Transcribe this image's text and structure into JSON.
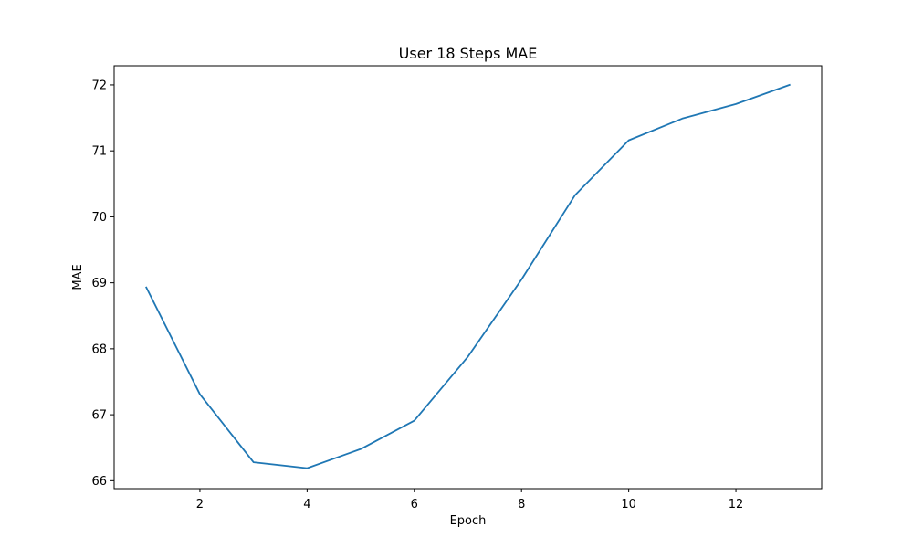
{
  "chart_data": {
    "type": "line",
    "title": "User 18 Steps MAE",
    "xlabel": "Epoch",
    "ylabel": "MAE",
    "x": [
      1,
      2,
      3,
      4,
      5,
      6,
      7,
      8,
      9,
      10,
      11,
      12,
      13
    ],
    "series": [
      {
        "values": [
          68.93,
          67.31,
          66.28,
          66.19,
          66.48,
          66.91,
          67.88,
          69.05,
          70.33,
          71.16,
          71.49,
          71.71,
          72.0
        ],
        "color": "#1f77b4"
      }
    ],
    "xlim": [
      0.4,
      13.6
    ],
    "ylim": [
      65.88,
      72.29
    ],
    "xticks": [
      2,
      4,
      6,
      8,
      10,
      12
    ],
    "yticks": [
      66,
      67,
      68,
      69,
      70,
      71,
      72
    ],
    "grid": false,
    "legend": "none"
  }
}
